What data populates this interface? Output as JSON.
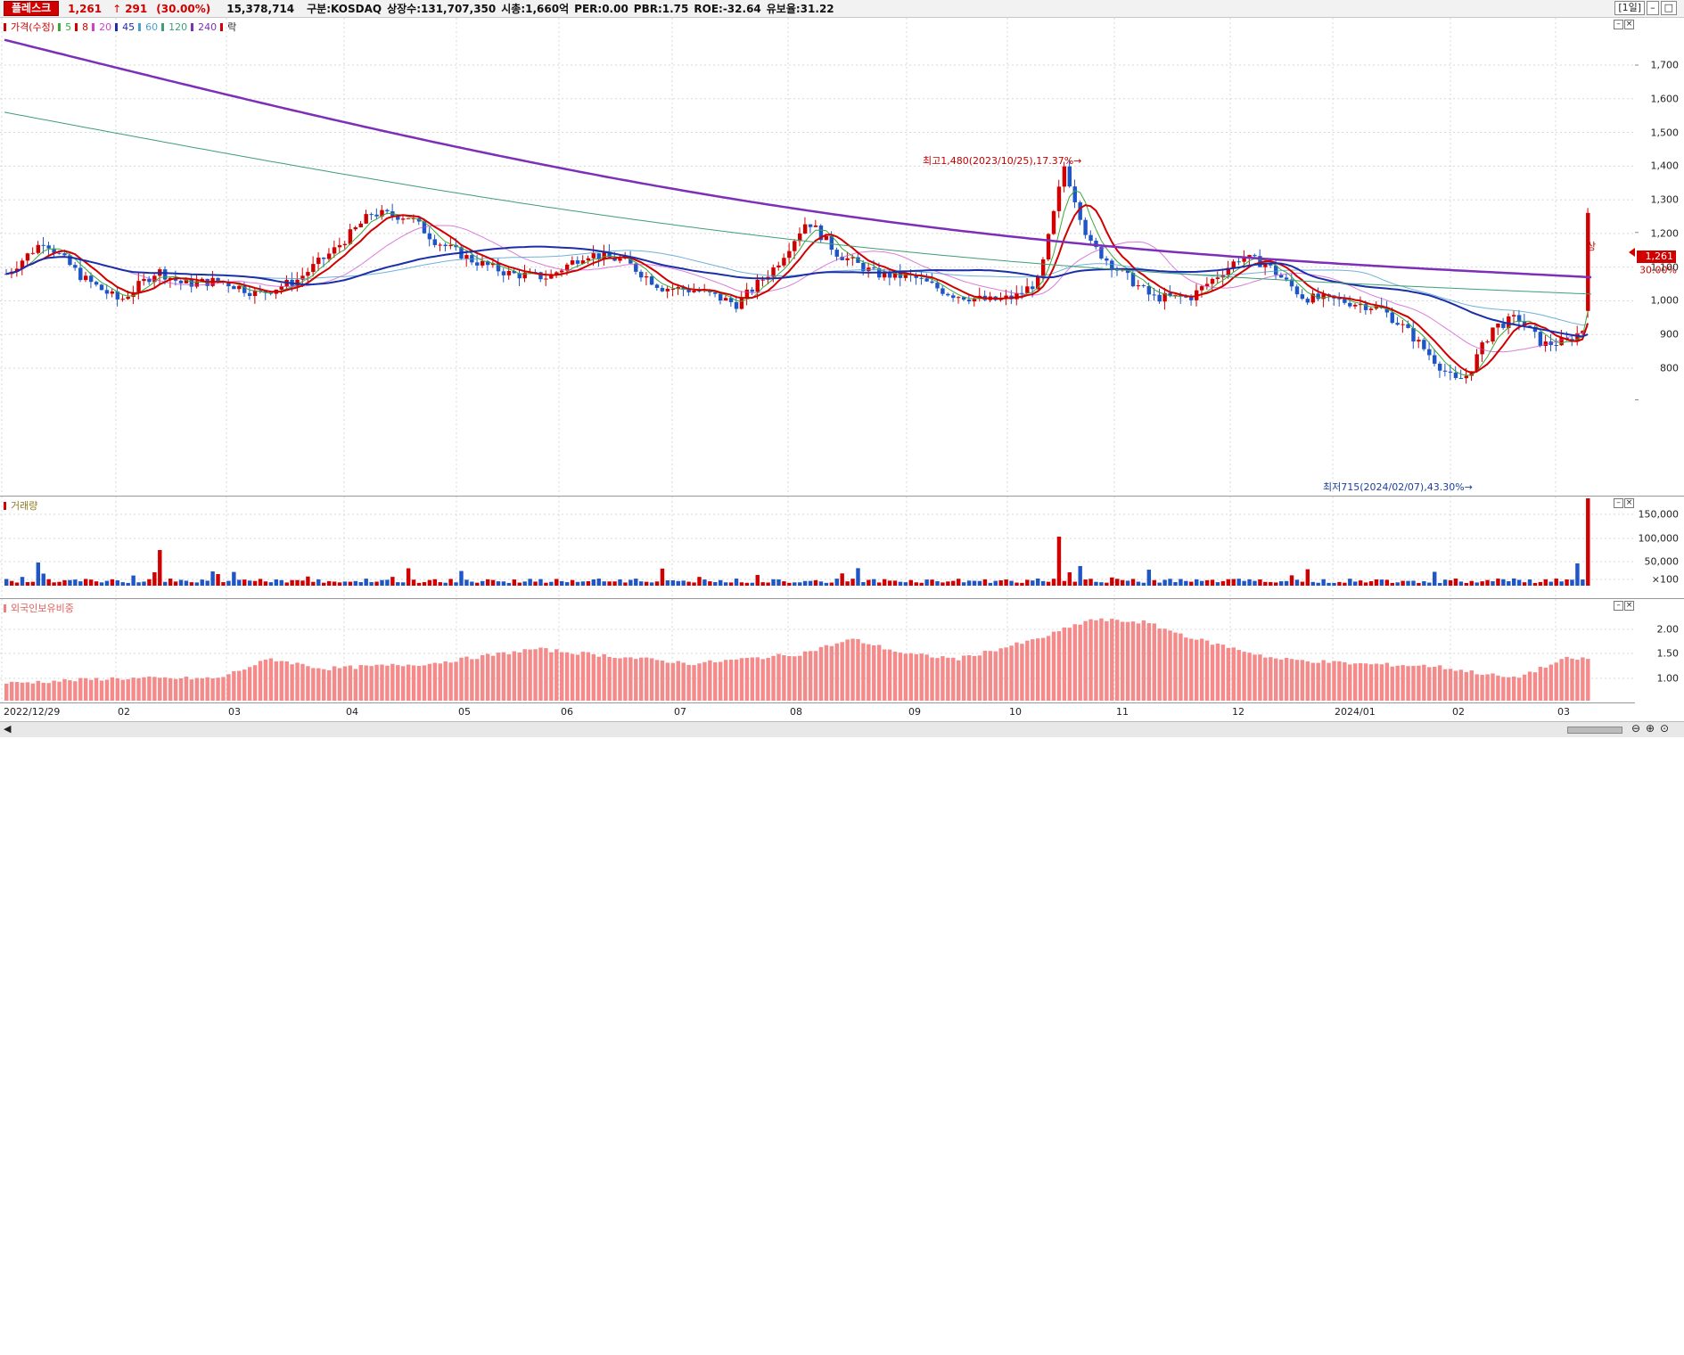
{
  "header": {
    "stock_name": "플레스크",
    "price": "1,261",
    "arrow": "↑",
    "change": "291",
    "change_pct": "(30.00%)",
    "volume": "15,378,714",
    "market": "구분:KOSDAQ",
    "shares": "상장수:131,707,350",
    "market_cap": "시총:1,660억",
    "per": "PER:0.00",
    "pbr": "PBR:1.75",
    "roe": "ROE:-32.64",
    "float_ratio": "유보율:31.22",
    "period_button": "[1일]"
  },
  "price_pane": {
    "legend_title": "가격(수정)",
    "ma_labels": [
      "5",
      "8",
      "20",
      "45",
      "60",
      "120",
      "240"
    ],
    "legend_tail": "락",
    "colors": {
      "5": "#3aa93a",
      "8": "#d00000",
      "20": "#cc44cc",
      "45": "#1a2fa8",
      "60": "#4b9fcf",
      "120": "#3e9e74",
      "240": "#7d2fb8",
      "up": "#d00000",
      "down": "#1e56c8"
    },
    "y_labels": [
      "1,700",
      "1,600",
      "1,500",
      "1,400",
      "1,300",
      "1,200",
      "1,100",
      "1,000",
      "900",
      "800"
    ],
    "annot_high": "최고1,480(2023/10/25),17.37%→",
    "annot_low": "최저715(2024/02/07),43.30%→",
    "annot_limit": "상",
    "current_price_box": "1,261",
    "current_pct": "30.00%"
  },
  "volume_pane": {
    "legend": "거래량",
    "y_labels": [
      "150,000",
      "100,000",
      "50,000",
      "×100"
    ]
  },
  "foreign_pane": {
    "legend": "외국인보유비중",
    "y_labels": [
      "2.00",
      "1.50",
      "1.00"
    ]
  },
  "x_axis": {
    "labels": [
      "2022/12/29",
      "02",
      "03",
      "04",
      "05",
      "06",
      "07",
      "08",
      "09",
      "10",
      "11",
      "12",
      "2024/01",
      "02",
      "03"
    ]
  }
}
